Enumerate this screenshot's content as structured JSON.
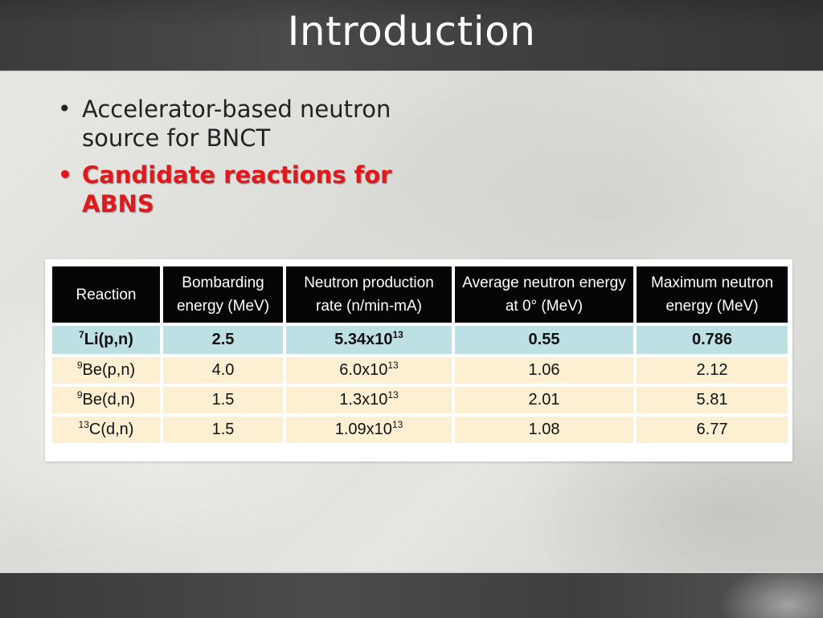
{
  "slide": {
    "title": "Introduction",
    "bullets": [
      "Accelerator-based neutron source for BNCT",
      "Candidate reactions for ABNS"
    ],
    "bullet_char": "•"
  },
  "table": {
    "headers": [
      "Reaction",
      "Bombarding energy (MeV)",
      "Neutron production rate (n/min-mA)",
      "Average neutron energy at 0° (MeV)",
      "Maximum neutron energy (MeV)"
    ],
    "rows": [
      {
        "reaction_sup": "7",
        "reaction": "Li(p,n)",
        "energy": "2.5",
        "rate_base": "5.34x10",
        "rate_exp": "13",
        "avg": "0.55",
        "max": "0.786",
        "highlight": true
      },
      {
        "reaction_sup": "9",
        "reaction": "Be(p,n)",
        "energy": "4.0",
        "rate_base": "6.0x10",
        "rate_exp": "13",
        "avg": "1.06",
        "max": "2.12"
      },
      {
        "reaction_sup": "9",
        "reaction": "Be(d,n)",
        "energy": "1.5",
        "rate_base": "1.3x10",
        "rate_exp": "13",
        "avg": "2.01",
        "max": "5.81"
      },
      {
        "reaction_sup": "13",
        "reaction": "C(d,n)",
        "energy": "1.5",
        "rate_base": "1.09x10",
        "rate_exp": "13",
        "avg": "1.08",
        "max": "6.77"
      }
    ]
  },
  "colors": {
    "highlight_bullet": "#e0191d",
    "header_bg": "#050505",
    "highlight_row_bg": "#bde0e4",
    "row_bg": "#fdefd2"
  }
}
